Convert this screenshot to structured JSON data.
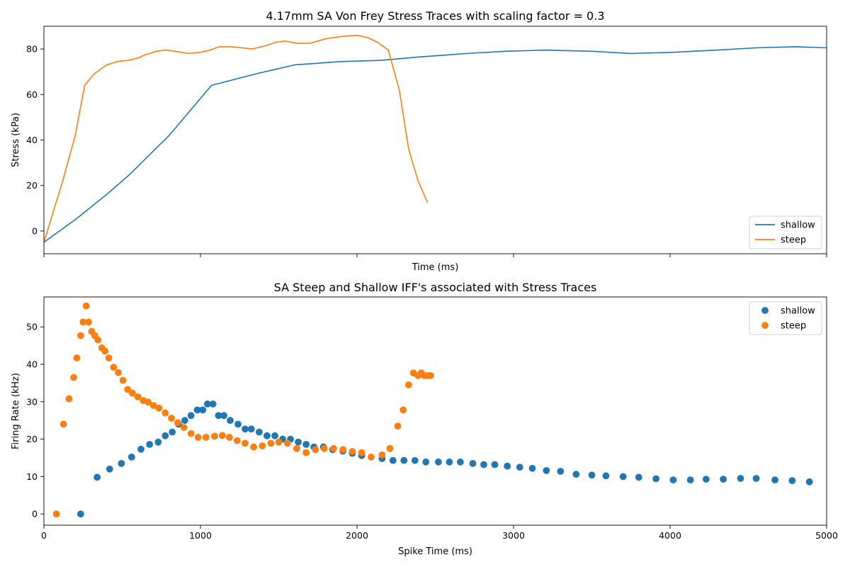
{
  "chart_data": [
    {
      "type": "line",
      "title": "4.17mm SA Von Frey Stress Traces with scaling factor = 0.3",
      "xlabel": "Time (ms)",
      "ylabel": "Stress (kPa)",
      "xlim": [
        0,
        5000
      ],
      "ylim": [
        -10,
        90
      ],
      "xticks": [
        0,
        1000,
        2000,
        3000,
        4000,
        5000
      ],
      "xtick_labels_visible": false,
      "yticks": [
        0,
        20,
        40,
        60,
        80
      ],
      "grid": false,
      "legend": "bottom-right",
      "series": [
        {
          "name": "shallow",
          "color": "#1f77b4",
          "x": [
            0,
            200,
            400,
            550,
            800,
            1070,
            1350,
            1600,
            1900,
            2150,
            2400,
            2700,
            2950,
            3200,
            3500,
            3750,
            4000,
            4300,
            4550,
            4800,
            5000
          ],
          "y": [
            -5,
            5,
            16,
            25,
            42,
            64,
            69,
            73,
            74.5,
            75,
            76.5,
            78,
            79,
            79.5,
            79,
            78,
            78.5,
            79.5,
            80.5,
            81,
            80.5
          ]
        },
        {
          "name": "steep",
          "color": "#ff7f0e",
          "x": [
            0,
            120,
            200,
            260,
            320,
            400,
            470,
            540,
            600,
            650,
            720,
            780,
            840,
            920,
            1000,
            1060,
            1120,
            1200,
            1330,
            1420,
            1480,
            1540,
            1620,
            1700,
            1800,
            1900,
            2000,
            2070,
            2130,
            2200,
            2270,
            2330,
            2390,
            2450
          ],
          "y": [
            -5,
            22,
            42,
            64,
            69,
            73,
            74.5,
            75,
            76,
            77.5,
            79,
            79.5,
            79,
            78,
            78.5,
            79.5,
            81,
            81,
            80,
            81.5,
            83,
            83.5,
            82.5,
            82.5,
            84.5,
            85.5,
            86,
            85,
            83,
            79.5,
            62,
            36,
            22,
            12.5
          ]
        }
      ]
    },
    {
      "type": "scatter",
      "title": "SA Steep and Shallow IFF's associated with Stress Traces",
      "xlabel": "Spike Time (ms)",
      "ylabel": "Firing Rate (kHz)",
      "xlim": [
        0,
        5000
      ],
      "ylim": [
        -3,
        58
      ],
      "xticks": [
        0,
        1000,
        2000,
        3000,
        4000,
        5000
      ],
      "yticks": [
        0,
        10,
        20,
        30,
        40,
        50
      ],
      "grid": false,
      "legend": "top-right",
      "series": [
        {
          "name": "shallow",
          "color": "#1f77b4",
          "x": [
            235,
            340,
            420,
            495,
            560,
            620,
            675,
            730,
            775,
            820,
            860,
            900,
            940,
            980,
            1015,
            1045,
            1080,
            1115,
            1150,
            1190,
            1240,
            1285,
            1325,
            1375,
            1425,
            1475,
            1525,
            1575,
            1625,
            1675,
            1725,
            1785,
            1845,
            1910,
            1970,
            2030,
            2160,
            2230,
            2300,
            2370,
            2440,
            2520,
            2590,
            2660,
            2740,
            2810,
            2880,
            2960,
            3040,
            3120,
            3210,
            3300,
            3400,
            3500,
            3590,
            3700,
            3800,
            3910,
            4020,
            4130,
            4230,
            4340,
            4450,
            4550,
            4670,
            4780,
            4890
          ],
          "y": [
            0,
            9.8,
            12,
            13.5,
            15.2,
            17.3,
            18.6,
            19.2,
            20.9,
            21.9,
            24,
            25,
            26.3,
            27.8,
            27.8,
            29.4,
            29.4,
            26.3,
            26.3,
            25,
            24,
            22.7,
            22.7,
            21.9,
            20.9,
            20.9,
            20,
            20,
            19.2,
            18.6,
            17.9,
            17.9,
            17.2,
            16.8,
            16.2,
            15.6,
            14.8,
            14.3,
            14.3,
            14.3,
            13.9,
            13.9,
            13.9,
            13.9,
            13.5,
            13.2,
            13.2,
            12.8,
            12.5,
            12.2,
            11.6,
            11.4,
            10.6,
            10.4,
            10.2,
            10,
            9.8,
            9.4,
            9.1,
            9.1,
            9.3,
            9.3,
            9.5,
            9.5,
            9.1,
            8.9,
            8.6
          ]
        },
        {
          "name": "steep",
          "color": "#ff7f0e",
          "x": [
            80,
            125,
            160,
            190,
            210,
            235,
            250,
            270,
            285,
            305,
            325,
            345,
            370,
            390,
            415,
            445,
            475,
            505,
            535,
            565,
            600,
            635,
            665,
            700,
            735,
            775,
            815,
            855,
            895,
            940,
            985,
            1035,
            1090,
            1140,
            1185,
            1235,
            1285,
            1340,
            1395,
            1450,
            1500,
            1555,
            1615,
            1675,
            1735,
            1790,
            1850,
            1910,
            1970,
            2030,
            2090,
            2160,
            2210,
            2260,
            2295,
            2330,
            2360,
            2390,
            2410,
            2430,
            2450,
            2470
          ],
          "y": [
            0,
            24,
            30.8,
            36.5,
            41.7,
            47.7,
            51.3,
            55.6,
            51.3,
            48.8,
            47.7,
            46.5,
            44.4,
            43.5,
            41.7,
            39.2,
            37.8,
            35.7,
            33.3,
            32.3,
            31.3,
            30.3,
            29.9,
            29,
            28.3,
            27,
            25.6,
            24.4,
            23.1,
            21.5,
            20.5,
            20.5,
            20.8,
            21,
            20.5,
            19.6,
            18.9,
            17.9,
            18.2,
            18.9,
            19.2,
            18.9,
            17.5,
            16.4,
            17.2,
            17.5,
            17.5,
            17.2,
            16.7,
            16.4,
            15.2,
            15.8,
            17.5,
            23.5,
            27.8,
            34.5,
            37.7,
            37,
            37.7,
            37,
            37,
            37
          ]
        }
      ]
    }
  ]
}
